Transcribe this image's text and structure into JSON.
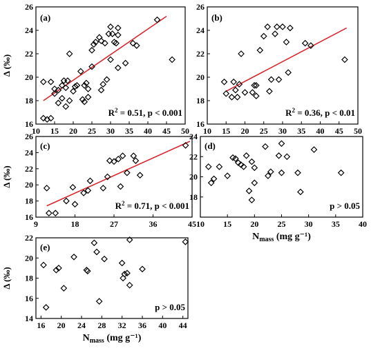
{
  "chart_data": [
    {
      "panel": "(a)",
      "type": "scatter",
      "ylabel": "Δ (‰)",
      "xlabel": "",
      "xlim": [
        10,
        50
      ],
      "ylim": [
        16,
        26
      ],
      "xticks": [
        10,
        15,
        20,
        25,
        30,
        35,
        40,
        45,
        50
      ],
      "yticks": [
        16,
        18,
        20,
        22,
        24,
        26
      ],
      "fit": {
        "x": [
          12,
          45
        ],
        "y": [
          18.0,
          25.2
        ]
      },
      "annotation": "R² = 0.51, p < 0.001",
      "points": [
        [
          12,
          16.5
        ],
        [
          12,
          19.6
        ],
        [
          13,
          16.4
        ],
        [
          14,
          16.5
        ],
        [
          14,
          19.6
        ],
        [
          15,
          18.6
        ],
        [
          15,
          19.0
        ],
        [
          16,
          17.8
        ],
        [
          16,
          18.9
        ],
        [
          17,
          19.3
        ],
        [
          17,
          18.2
        ],
        [
          17.5,
          19.7
        ],
        [
          18,
          17.5
        ],
        [
          18,
          19.1
        ],
        [
          18.5,
          19.7
        ],
        [
          19,
          18.0
        ],
        [
          19,
          22.0
        ],
        [
          20,
          18.8
        ],
        [
          20.5,
          19.2
        ],
        [
          21,
          19.3
        ],
        [
          22,
          20.5
        ],
        [
          22.5,
          18.1
        ],
        [
          23,
          17.9
        ],
        [
          23,
          19.3
        ],
        [
          23.5,
          19.5
        ],
        [
          24,
          19.0
        ],
        [
          24,
          18.3
        ],
        [
          25,
          20.9
        ],
        [
          25,
          22.3
        ],
        [
          25.5,
          22.8
        ],
        [
          26,
          23.0
        ],
        [
          27,
          23.4
        ],
        [
          27.5,
          23.1
        ],
        [
          27.5,
          18.9
        ],
        [
          28,
          19.4
        ],
        [
          28.5,
          22.9
        ],
        [
          29,
          19.8
        ],
        [
          29.5,
          23.7
        ],
        [
          30,
          21.5
        ],
        [
          30,
          24.3
        ],
        [
          30.5,
          23.7
        ],
        [
          31,
          23.0
        ],
        [
          31.5,
          22.9
        ],
        [
          32,
          24.2
        ],
        [
          32,
          23.6
        ],
        [
          32,
          20.8
        ],
        [
          34,
          21.2
        ],
        [
          36,
          22.9
        ],
        [
          37,
          22.7
        ],
        [
          42.5,
          24.9
        ],
        [
          46.5,
          21.5
        ]
      ]
    },
    {
      "panel": "(b)",
      "type": "scatter",
      "ylabel": "",
      "xlabel": "",
      "xlim": [
        10,
        50
      ],
      "ylim": [
        16,
        26
      ],
      "xticks": [
        10,
        15,
        20,
        25,
        30,
        35,
        40,
        45,
        50
      ],
      "yticks": [
        16,
        18,
        20,
        22,
        24,
        26
      ],
      "fit": {
        "x": [
          15,
          47
        ],
        "y": [
          18.8,
          24.2
        ]
      },
      "annotation": "R² = 0.36, p < 0.01",
      "points": [
        [
          14.5,
          19.6
        ],
        [
          15,
          18.6
        ],
        [
          16.5,
          18.3
        ],
        [
          17,
          19.6
        ],
        [
          17.5,
          18.9
        ],
        [
          18,
          18.3
        ],
        [
          18.5,
          19.4
        ],
        [
          19,
          22.0
        ],
        [
          20,
          18.7
        ],
        [
          22,
          18.7
        ],
        [
          22.5,
          19.3
        ],
        [
          23,
          19.3
        ],
        [
          23,
          18.4
        ],
        [
          24,
          22.3
        ],
        [
          25,
          23.5
        ],
        [
          26,
          24.3
        ],
        [
          26.5,
          18.8
        ],
        [
          27,
          19.8
        ],
        [
          28,
          23.7
        ],
        [
          28.5,
          24.3
        ],
        [
          29,
          19.8
        ],
        [
          30,
          24.3
        ],
        [
          31,
          23.0
        ],
        [
          31.5,
          20.4
        ],
        [
          32,
          24.2
        ],
        [
          36,
          22.9
        ],
        [
          37.5,
          22.7
        ],
        [
          46.5,
          21.5
        ]
      ]
    },
    {
      "panel": "(c)",
      "type": "scatter",
      "ylabel": "Δ (‰)",
      "xlabel": "",
      "xlim": [
        9,
        45
      ],
      "ylim": [
        16,
        26
      ],
      "xticks": [
        9,
        18,
        27,
        36,
        45
      ],
      "yticks": [
        16,
        18,
        20,
        22,
        24,
        26
      ],
      "fit": {
        "x": [
          11.5,
          44.5
        ],
        "y": [
          17.4,
          25.4
        ]
      },
      "annotation": "R² = 0.71, p < 0.001",
      "points": [
        [
          11.5,
          19.6
        ],
        [
          12,
          16.5
        ],
        [
          13.5,
          16.5
        ],
        [
          16,
          18.0
        ],
        [
          17.5,
          19.7
        ],
        [
          18,
          17.6
        ],
        [
          20,
          19.0
        ],
        [
          21,
          19.3
        ],
        [
          21.5,
          20.5
        ],
        [
          24.5,
          19.6
        ],
        [
          25.5,
          21.0
        ],
        [
          26,
          23.0
        ],
        [
          27,
          22.9
        ],
        [
          28,
          23.2
        ],
        [
          28.5,
          19.8
        ],
        [
          29,
          23.6
        ],
        [
          30,
          21.5
        ],
        [
          31.5,
          23.6
        ],
        [
          32,
          23.0
        ],
        [
          33,
          21.2
        ],
        [
          43.5,
          24.9
        ]
      ]
    },
    {
      "panel": "(d)",
      "type": "scatter",
      "ylabel": "",
      "xlabel": "Nmass (mg g⁻¹)",
      "xlim": [
        10,
        40
      ],
      "ylim": [
        16,
        24
      ],
      "xticks": [
        10,
        15,
        20,
        25,
        30,
        35,
        40
      ],
      "yticks": [
        18,
        20,
        22,
        24
      ],
      "fit": null,
      "annotation": "p > 0.05",
      "points": [
        [
          11.5,
          21.0
        ],
        [
          12,
          19.4
        ],
        [
          12.5,
          19.8
        ],
        [
          13.5,
          21.0
        ],
        [
          15,
          20.1
        ],
        [
          16,
          21.9
        ],
        [
          16.5,
          21.8
        ],
        [
          17,
          21.4
        ],
        [
          17.5,
          21.2
        ],
        [
          18,
          21.0
        ],
        [
          18.5,
          22.1
        ],
        [
          19,
          18.6
        ],
        [
          19.5,
          17.7
        ],
        [
          19.5,
          21.5
        ],
        [
          20,
          20.9
        ],
        [
          20,
          19.4
        ],
        [
          22,
          23.0
        ],
        [
          22.5,
          20.1
        ],
        [
          23,
          20.5
        ],
        [
          24.5,
          22.1
        ],
        [
          25,
          20.4
        ],
        [
          25,
          23.3
        ],
        [
          26,
          22.0
        ],
        [
          28,
          20.4
        ],
        [
          28.5,
          18.5
        ],
        [
          31,
          22.7
        ],
        [
          36,
          20.4
        ]
      ]
    },
    {
      "panel": "(e)",
      "type": "scatter",
      "ylabel": "Δ (‰)",
      "xlabel": "Nmass (mg g⁻¹)",
      "xlim": [
        15,
        45
      ],
      "ylim": [
        14,
        22
      ],
      "xticks": [
        16,
        20,
        24,
        28,
        32,
        36,
        40,
        44
      ],
      "yticks": [
        14,
        16,
        18,
        20,
        22
      ],
      "fit": null,
      "annotation": "p > 0.05",
      "points": [
        [
          16.5,
          19.3
        ],
        [
          17,
          15.1
        ],
        [
          19,
          18.8
        ],
        [
          19.5,
          19.0
        ],
        [
          20.5,
          17.0
        ],
        [
          22.5,
          20.1
        ],
        [
          25,
          18.8
        ],
        [
          25.2,
          18.7
        ],
        [
          26.5,
          21.5
        ],
        [
          27,
          20.6
        ],
        [
          27.5,
          15.7
        ],
        [
          28.5,
          19.9
        ],
        [
          32,
          19.5
        ],
        [
          32.2,
          18.0
        ],
        [
          32.5,
          18.4
        ],
        [
          33,
          18.5
        ],
        [
          33.5,
          17.3
        ],
        [
          33.5,
          21.8
        ],
        [
          36,
          18.9
        ],
        [
          44.5,
          21.6
        ]
      ]
    }
  ]
}
